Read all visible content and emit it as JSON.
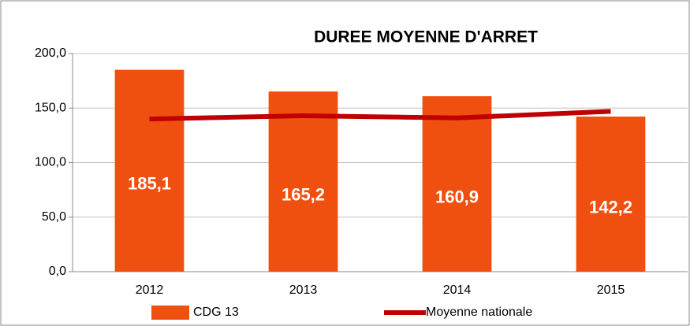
{
  "chart_data": {
    "type": "bar",
    "title": "DUREE MOYENNE D'ARRET",
    "categories": [
      "2012",
      "2013",
      "2014",
      "2015"
    ],
    "series": [
      {
        "name": "CDG 13",
        "type": "bar",
        "color": "#f0500f",
        "values": [
          185.1,
          165.2,
          160.9,
          142.2
        ],
        "value_labels": [
          "185,1",
          "165,2",
          "160,9",
          "142,2"
        ]
      },
      {
        "name": "Moyenne nationale",
        "type": "line",
        "color": "#c00000",
        "values": [
          140,
          143,
          141,
          147
        ]
      }
    ],
    "ylim": [
      0,
      200
    ],
    "yticks": [
      {
        "value": 0,
        "label": "0,0"
      },
      {
        "value": 50,
        "label": "50,0"
      },
      {
        "value": 100,
        "label": "100,0"
      },
      {
        "value": 150,
        "label": "150,0"
      },
      {
        "value": 200,
        "label": "200,0"
      }
    ],
    "grid": true,
    "legend": "bottom"
  }
}
